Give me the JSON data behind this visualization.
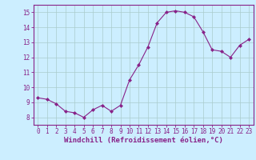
{
  "x": [
    0,
    1,
    2,
    3,
    4,
    5,
    6,
    7,
    8,
    9,
    10,
    11,
    12,
    13,
    14,
    15,
    16,
    17,
    18,
    19,
    20,
    21,
    22,
    23
  ],
  "y": [
    9.3,
    9.2,
    8.9,
    8.4,
    8.3,
    8.0,
    8.5,
    8.8,
    8.4,
    8.8,
    10.5,
    11.5,
    12.7,
    14.3,
    15.0,
    15.1,
    15.0,
    14.7,
    13.7,
    12.5,
    12.4,
    12.0,
    12.8,
    13.2
  ],
  "line_color": "#882288",
  "marker": "D",
  "marker_size": 2,
  "bg_color": "#cceeff",
  "grid_color": "#aacccc",
  "xlabel": "Windchill (Refroidissement éolien,°C)",
  "xlabel_color": "#882288",
  "tick_color": "#882288",
  "axis_color": "#882288",
  "ylim": [
    7.5,
    15.5
  ],
  "xlim": [
    -0.5,
    23.5
  ],
  "yticks": [
    8,
    9,
    10,
    11,
    12,
    13,
    14,
    15
  ],
  "xticks": [
    0,
    1,
    2,
    3,
    4,
    5,
    6,
    7,
    8,
    9,
    10,
    11,
    12,
    13,
    14,
    15,
    16,
    17,
    18,
    19,
    20,
    21,
    22,
    23
  ],
  "tick_fontsize": 5.5,
  "xlabel_fontsize": 6.5
}
